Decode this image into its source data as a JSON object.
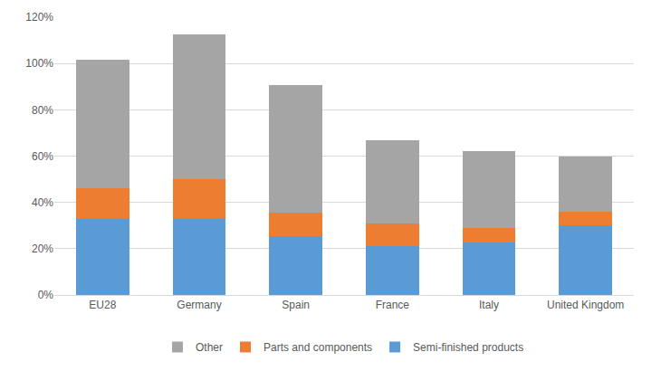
{
  "chart_data": {
    "type": "bar",
    "stacked": true,
    "grid": true,
    "legend": "bottom",
    "categories": [
      "EU28",
      "Germany",
      "Spain",
      "France",
      "Italy",
      "United Kingdom"
    ],
    "series": [
      {
        "name": "Semi-finished products",
        "color": "#5b9bd5",
        "values": [
          33,
          33,
          25.5,
          21,
          22.5,
          30
        ]
      },
      {
        "name": "Parts and components",
        "color": "#ed7d31",
        "values": [
          13,
          17,
          10,
          10,
          6.5,
          6
        ]
      },
      {
        "name": "Other",
        "color": "#a5a5a5",
        "values": [
          55.5,
          62.5,
          55,
          36,
          33,
          24
        ]
      }
    ],
    "ylim": [
      0,
      120
    ],
    "yticks": [
      {
        "value": 0,
        "label": "0%"
      },
      {
        "value": 20,
        "label": "20%"
      },
      {
        "value": 40,
        "label": "40%"
      },
      {
        "value": 60,
        "label": "60%"
      },
      {
        "value": 80,
        "label": "80%"
      },
      {
        "value": 100,
        "label": "100%"
      },
      {
        "value": 120,
        "label": "120%"
      }
    ]
  }
}
